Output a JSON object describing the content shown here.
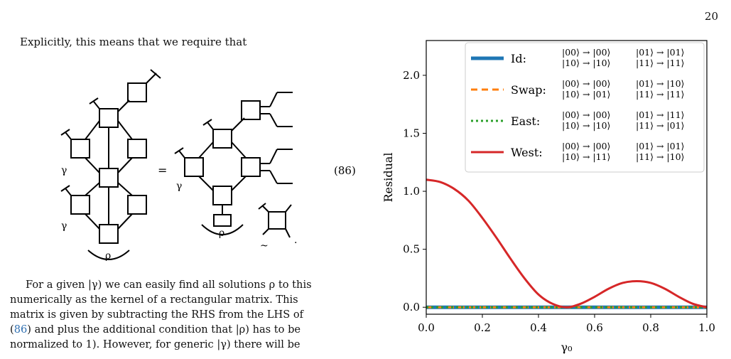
{
  "page": {
    "number": "20"
  },
  "text": {
    "intro": "Explicitly, this means that we require that",
    "eq_number": "(86)",
    "eq_equals": "=",
    "paragraph_lines": [
      "For a given |γ) we can easily find all solutions ρ to this",
      "numerically as the kernel of a rectangular matrix. This",
      "matrix is given by subtracting the RHS from the LHS of",
      "(86) and plus the additional condition that |ρ) has to be",
      "normalized to 1). However, for generic |γ) there will be"
    ],
    "cite_label": "86",
    "diagram_labels": {
      "gamma": "γ",
      "rho": "ρ",
      "tilde": "~"
    }
  },
  "chart_data": {
    "type": "line",
    "xlabel": "γ₀",
    "ylabel": "Residual",
    "xlim": [
      0,
      1
    ],
    "ylim": [
      -0.06,
      2.3
    ],
    "xticks": [
      0.0,
      0.2,
      0.4,
      0.6,
      0.8,
      1.0
    ],
    "xtick_labels": [
      "0.0",
      "0.2",
      "0.4",
      "0.6",
      "0.8",
      "1.0"
    ],
    "yticks": [
      0.0,
      0.5,
      1.0,
      1.5,
      2.0
    ],
    "ytick_labels": [
      "0.0",
      "0.5",
      "1.0",
      "1.5",
      "2.0"
    ],
    "grid": false,
    "legend_position": "top-right",
    "series": [
      {
        "name": "Id:",
        "color": "#1f77b4",
        "style": "solid",
        "width": 5,
        "maps": [
          "|00⟩ → |00⟩",
          "|01⟩ → |01⟩",
          "|10⟩ → |10⟩",
          "|11⟩ → |11⟩"
        ],
        "x": [
          0.0,
          0.5,
          1.0
        ],
        "y": [
          0.0,
          0.0,
          0.0
        ]
      },
      {
        "name": "Swap:",
        "color": "#ff7f0e",
        "style": "dashed",
        "width": 3,
        "maps": [
          "|00⟩ → |00⟩",
          "|01⟩ → |10⟩",
          "|10⟩ → |01⟩",
          "|11⟩ → |11⟩"
        ],
        "x": [
          0.0,
          0.5,
          1.0
        ],
        "y": [
          0.0,
          0.0,
          0.0
        ]
      },
      {
        "name": "East:",
        "color": "#2ca02c",
        "style": "dotted",
        "width": 3,
        "maps": [
          "|00⟩ → |00⟩",
          "|01⟩ → |11⟩",
          "|10⟩ → |10⟩",
          "|11⟩ → |01⟩"
        ],
        "x": [
          0.0,
          0.5,
          1.0
        ],
        "y": [
          0.0,
          0.0,
          0.0
        ]
      },
      {
        "name": "West:",
        "color": "#d62728",
        "style": "solid",
        "width": 3,
        "maps": [
          "|00⟩ → |00⟩",
          "|01⟩ → |01⟩",
          "|10⟩ → |11⟩",
          "|11⟩ → |10⟩"
        ],
        "x": [
          0.0,
          0.05,
          0.1,
          0.15,
          0.2,
          0.25,
          0.3,
          0.35,
          0.4,
          0.45,
          0.5,
          0.55,
          0.6,
          0.65,
          0.7,
          0.75,
          0.8,
          0.85,
          0.9,
          0.95,
          1.0
        ],
        "y": [
          1.1,
          1.08,
          1.02,
          0.92,
          0.77,
          0.6,
          0.42,
          0.25,
          0.11,
          0.03,
          0.0,
          0.03,
          0.09,
          0.16,
          0.21,
          0.225,
          0.21,
          0.16,
          0.09,
          0.03,
          0.0
        ]
      }
    ]
  }
}
